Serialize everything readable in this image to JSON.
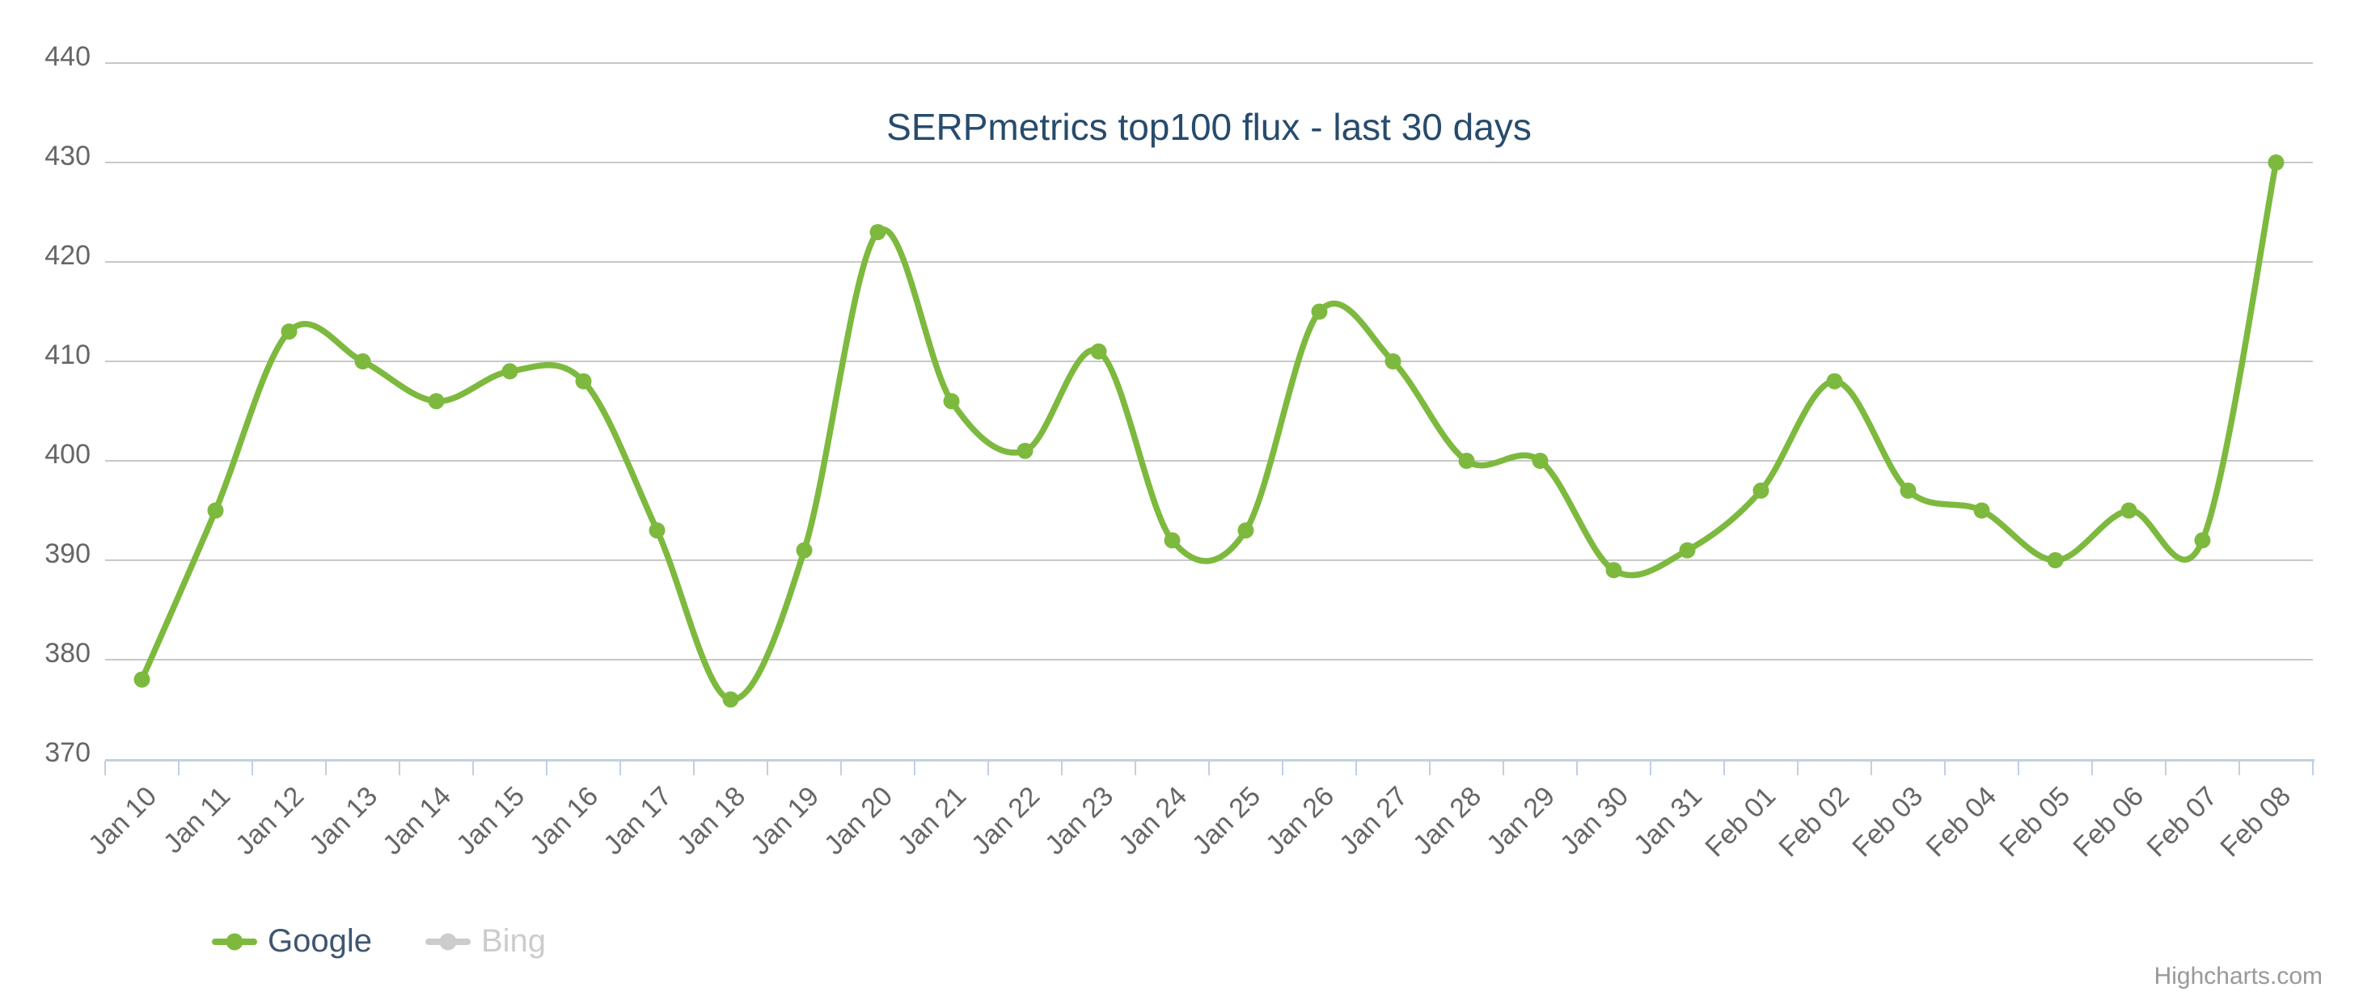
{
  "title": "SERPmetrics top100 flux - last 30 days",
  "credits": "Highcharts.com",
  "colors": {
    "series_green": "#7db93e",
    "disabled_gray": "#cccccc",
    "grid_line": "#c8c8c8",
    "axis_line": "#c0d0e0",
    "axis_label": "#666666",
    "title_text": "#274b6d",
    "legend_text": "#3e576f"
  },
  "legend": {
    "items": [
      {
        "label": "Google",
        "color": "#7db93e",
        "text_color": "#3e576f",
        "enabled": true
      },
      {
        "label": "Bing",
        "color": "#cccccc",
        "text_color": "#cccccc",
        "enabled": false
      }
    ]
  },
  "chart_data": {
    "type": "line",
    "title": "SERPmetrics top100 flux - last 30 days",
    "xlabel": "",
    "ylabel": "",
    "ylim": [
      370,
      440
    ],
    "ytick_interval": 10,
    "yticks": [
      370,
      380,
      390,
      400,
      410,
      420,
      430,
      440
    ],
    "grid": true,
    "legend_position": "bottom-left",
    "categories": [
      "Jan 10",
      "Jan 11",
      "Jan 12",
      "Jan 13",
      "Jan 14",
      "Jan 15",
      "Jan 16",
      "Jan 17",
      "Jan 18",
      "Jan 19",
      "Jan 20",
      "Jan 21",
      "Jan 22",
      "Jan 23",
      "Jan 24",
      "Jan 25",
      "Jan 26",
      "Jan 27",
      "Jan 28",
      "Jan 29",
      "Jan 30",
      "Jan 31",
      "Feb 01",
      "Feb 02",
      "Feb 03",
      "Feb 04",
      "Feb 05",
      "Feb 06",
      "Feb 07",
      "Feb 08"
    ],
    "series": [
      {
        "name": "Google",
        "color": "#7db93e",
        "visible": true,
        "marker": "circle",
        "smooth": true,
        "values": [
          378,
          395,
          413,
          410,
          406,
          409,
          408,
          393,
          376,
          391,
          423,
          406,
          401,
          411,
          392,
          393,
          415,
          410,
          400,
          400,
          389,
          391,
          397,
          408,
          397,
          395,
          390,
          395,
          392,
          430
        ]
      },
      {
        "name": "Bing",
        "color": "#cccccc",
        "visible": false,
        "values": []
      }
    ]
  }
}
